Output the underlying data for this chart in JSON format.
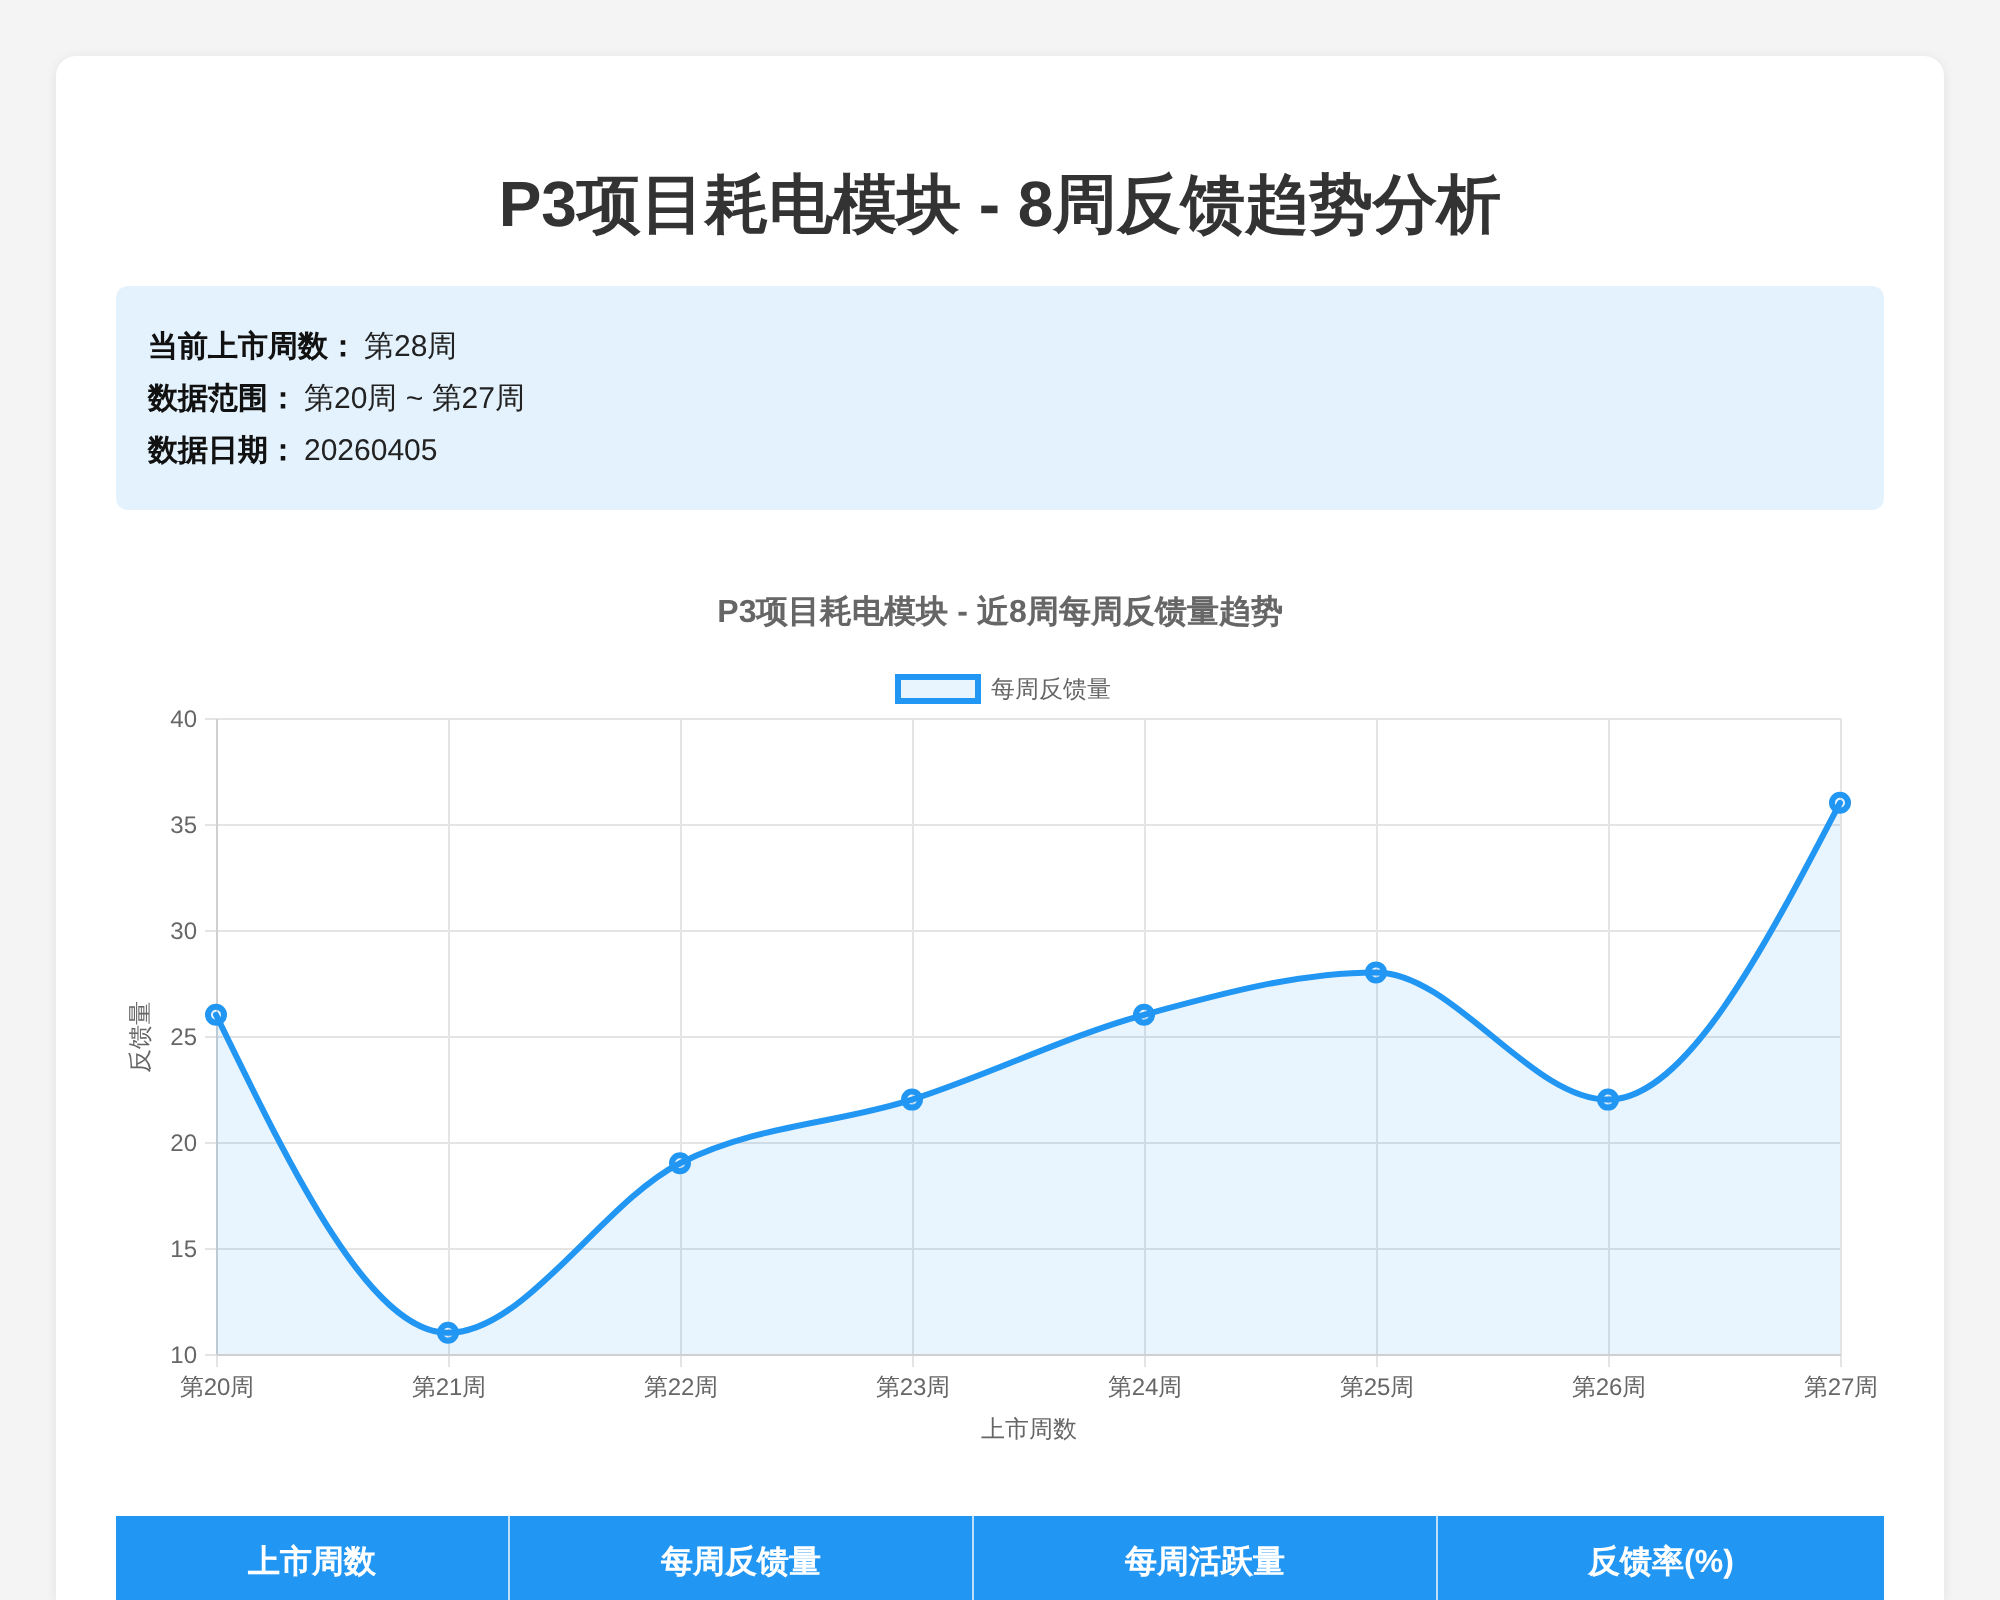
{
  "chart_data": [
    {
      "type": "other",
      "title": "P3项目耗电模块 - 8周反馈趋势分析",
      "annotations": [
        "当前上市周数：第28周",
        "数据范围：第20周 ~ 第27周",
        "数据日期：20260405"
      ]
    },
    {
      "type": "area",
      "title": "P3项目耗电模块 - 近8周每周反馈量趋势",
      "xlabel": "上市周数",
      "ylabel": "反馈量",
      "categories": [
        "第20周",
        "第21周",
        "第22周",
        "第23周",
        "第24周",
        "第25周",
        "第26周",
        "第27周"
      ],
      "series": [
        {
          "name": "每周反馈量",
          "color": "#2196f3",
          "values": [
            26,
            11,
            19,
            22,
            26,
            28,
            22,
            36
          ]
        }
      ],
      "ylim": [
        10,
        40
      ],
      "yticks": [
        10,
        15,
        20,
        25,
        30,
        35,
        40
      ],
      "grid": true,
      "legend": "top",
      "marker": "circle"
    },
    {
      "type": "other",
      "annotations": [
        "上市周数",
        "每周反馈量",
        "每周活跃量",
        "反馈率(%)"
      ]
    }
  ]
}
